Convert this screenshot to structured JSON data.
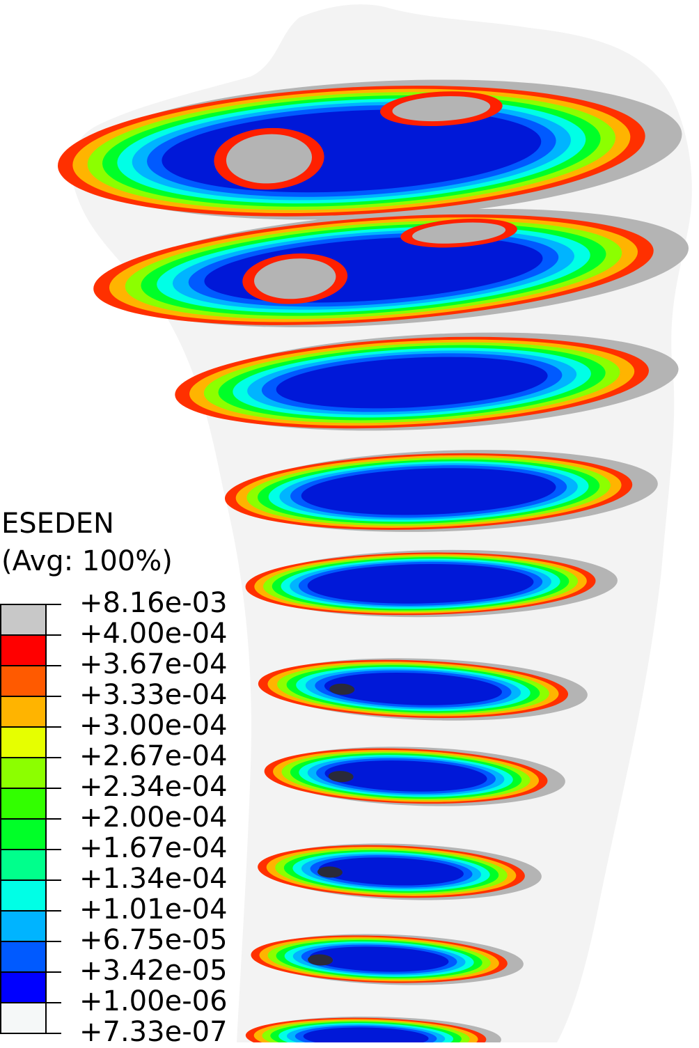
{
  "legend": {
    "title": "ESEDEN",
    "subtitle": "(Avg: 100%)",
    "levels": [
      {
        "label": "+8.16e-03",
        "color": "#c8c8c8"
      },
      {
        "label": "+4.00e-04",
        "color": "#ff0000"
      },
      {
        "label": "+3.67e-04",
        "color": "#ff5a00"
      },
      {
        "label": "+3.33e-04",
        "color": "#ffb400"
      },
      {
        "label": "+3.00e-04",
        "color": "#e6ff00"
      },
      {
        "label": "+2.67e-04",
        "color": "#8cff00"
      },
      {
        "label": "+2.34e-04",
        "color": "#32ff00"
      },
      {
        "label": "+2.00e-04",
        "color": "#00ff28"
      },
      {
        "label": "+1.67e-04",
        "color": "#00ff8c"
      },
      {
        "label": "+1.34e-04",
        "color": "#00ffe6"
      },
      {
        "label": "+1.01e-04",
        "color": "#00b4ff"
      },
      {
        "label": "+6.75e-05",
        "color": "#005aff"
      },
      {
        "label": "+3.42e-05",
        "color": "#0000ff"
      },
      {
        "label": "+1.00e-06",
        "color": "#f5f8f8"
      },
      {
        "label": "+7.33e-07",
        "color": null
      }
    ]
  },
  "model_colors": {
    "bone_outline": "#f2f2f2",
    "cortex": "#b4b4b4",
    "core": "#0018d8",
    "dark_patch": "#2a2a3a"
  }
}
